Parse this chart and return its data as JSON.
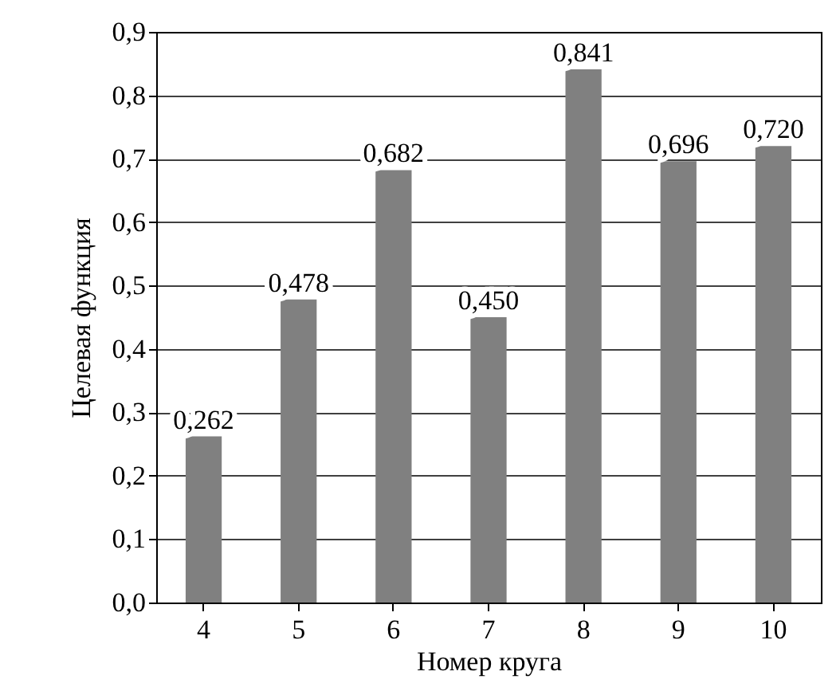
{
  "chart_data": {
    "type": "bar",
    "xlabel": "Номер круга",
    "ylabel": "Целевая функция",
    "categories": [
      "4",
      "5",
      "6",
      "7",
      "8",
      "9",
      "10"
    ],
    "values": [
      0.262,
      0.478,
      0.682,
      0.45,
      0.841,
      0.696,
      0.72
    ],
    "value_labels": [
      "0,262",
      "0,478",
      "0,682",
      "0,450",
      "0,841",
      "0,696",
      "0,720"
    ],
    "color": "#808080",
    "ylim": [
      0,
      0.9
    ],
    "yticks": [
      {
        "value": 0,
        "label": "0,0"
      },
      {
        "value": 0.1,
        "label": "0,1"
      },
      {
        "value": 0.2,
        "label": "0,2"
      },
      {
        "value": 0.3,
        "label": "0,3"
      },
      {
        "value": 0.4,
        "label": "0,4"
      },
      {
        "value": 0.5,
        "label": "0,5"
      },
      {
        "value": 0.6,
        "label": "0,6"
      },
      {
        "value": 0.7,
        "label": "0,7"
      },
      {
        "value": 0.8,
        "label": "0,8"
      },
      {
        "value": 0.9,
        "label": "0,9"
      }
    ],
    "grid": "y"
  }
}
